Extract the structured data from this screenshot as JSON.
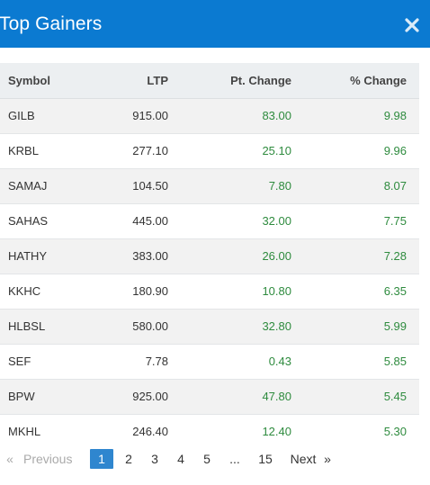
{
  "dialog": {
    "title": "Top Gainers"
  },
  "table": {
    "columns": {
      "symbol": "Symbol",
      "ltp": "LTP",
      "pt_change": "Pt. Change",
      "pct_change": "% Change"
    },
    "rows": [
      {
        "symbol": "GILB",
        "ltp": "915.00",
        "pt_change": "83.00",
        "pct_change": "9.98"
      },
      {
        "symbol": "KRBL",
        "ltp": "277.10",
        "pt_change": "25.10",
        "pct_change": "9.96"
      },
      {
        "symbol": "SAMAJ",
        "ltp": "104.50",
        "pt_change": "7.80",
        "pct_change": "8.07"
      },
      {
        "symbol": "SAHAS",
        "ltp": "445.00",
        "pt_change": "32.00",
        "pct_change": "7.75"
      },
      {
        "symbol": "HATHY",
        "ltp": "383.00",
        "pt_change": "26.00",
        "pct_change": "7.28"
      },
      {
        "symbol": "KKHC",
        "ltp": "180.90",
        "pt_change": "10.80",
        "pct_change": "6.35"
      },
      {
        "symbol": "HLBSL",
        "ltp": "580.00",
        "pt_change": "32.80",
        "pct_change": "5.99"
      },
      {
        "symbol": "SEF",
        "ltp": "7.78",
        "pt_change": "0.43",
        "pct_change": "5.85"
      },
      {
        "symbol": "BPW",
        "ltp": "925.00",
        "pt_change": "47.80",
        "pct_change": "5.45"
      },
      {
        "symbol": "MKHL",
        "ltp": "246.40",
        "pt_change": "12.40",
        "pct_change": "5.30"
      }
    ]
  },
  "pagination": {
    "prev_arrow": "«",
    "prev_label": "Previous",
    "pages": [
      "1",
      "2",
      "3",
      "4",
      "5"
    ],
    "active_page": "1",
    "ellipsis": "...",
    "last_page": "15",
    "next_label": "Next",
    "next_arrow": "»"
  },
  "colors": {
    "header_bg": "#0b7ad1",
    "positive_change": "#2e8b3e",
    "active_page_bg": "#2f86cf"
  }
}
